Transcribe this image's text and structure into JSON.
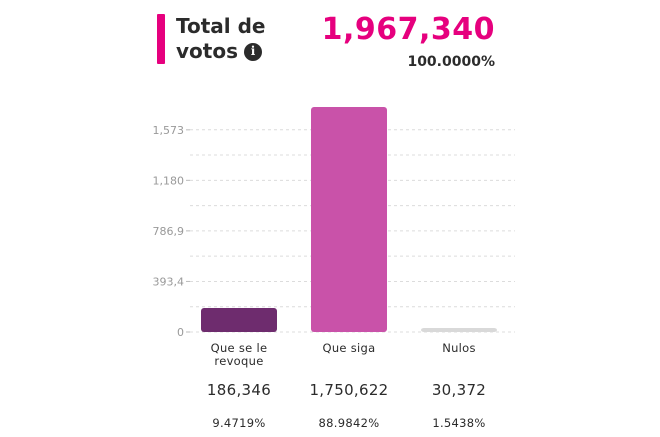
{
  "header": {
    "title_line1": "Total de",
    "title_line2": "votos",
    "info_icon": "info-icon",
    "total_votes": "1,967,340",
    "total_percent": "100.0000%",
    "accent_color": "#e6007e"
  },
  "chart_data": {
    "type": "bar",
    "title": "Total de votos",
    "categories": [
      "Que se le revoque",
      "Que siga",
      "Nulos"
    ],
    "values": [
      186346,
      1750622,
      30372
    ],
    "value_labels": [
      "186,346",
      "1,750,622",
      "30,372"
    ],
    "percent_labels": [
      "9.4719%",
      "88.9842%",
      "1.5438%"
    ],
    "colors": [
      "#6e2c6e",
      "#c952a9",
      "#d9d9d9"
    ],
    "y_ticks": [
      0,
      393.4,
      786.9,
      1180,
      1573
    ],
    "y_tick_labels": [
      "0",
      "393,4",
      "786,9",
      "1,180",
      "1,573"
    ],
    "y_units": "thousands",
    "ylim": [
      0,
      1750.622
    ],
    "grid": true,
    "grid_style": "dashed",
    "legend": "none"
  }
}
